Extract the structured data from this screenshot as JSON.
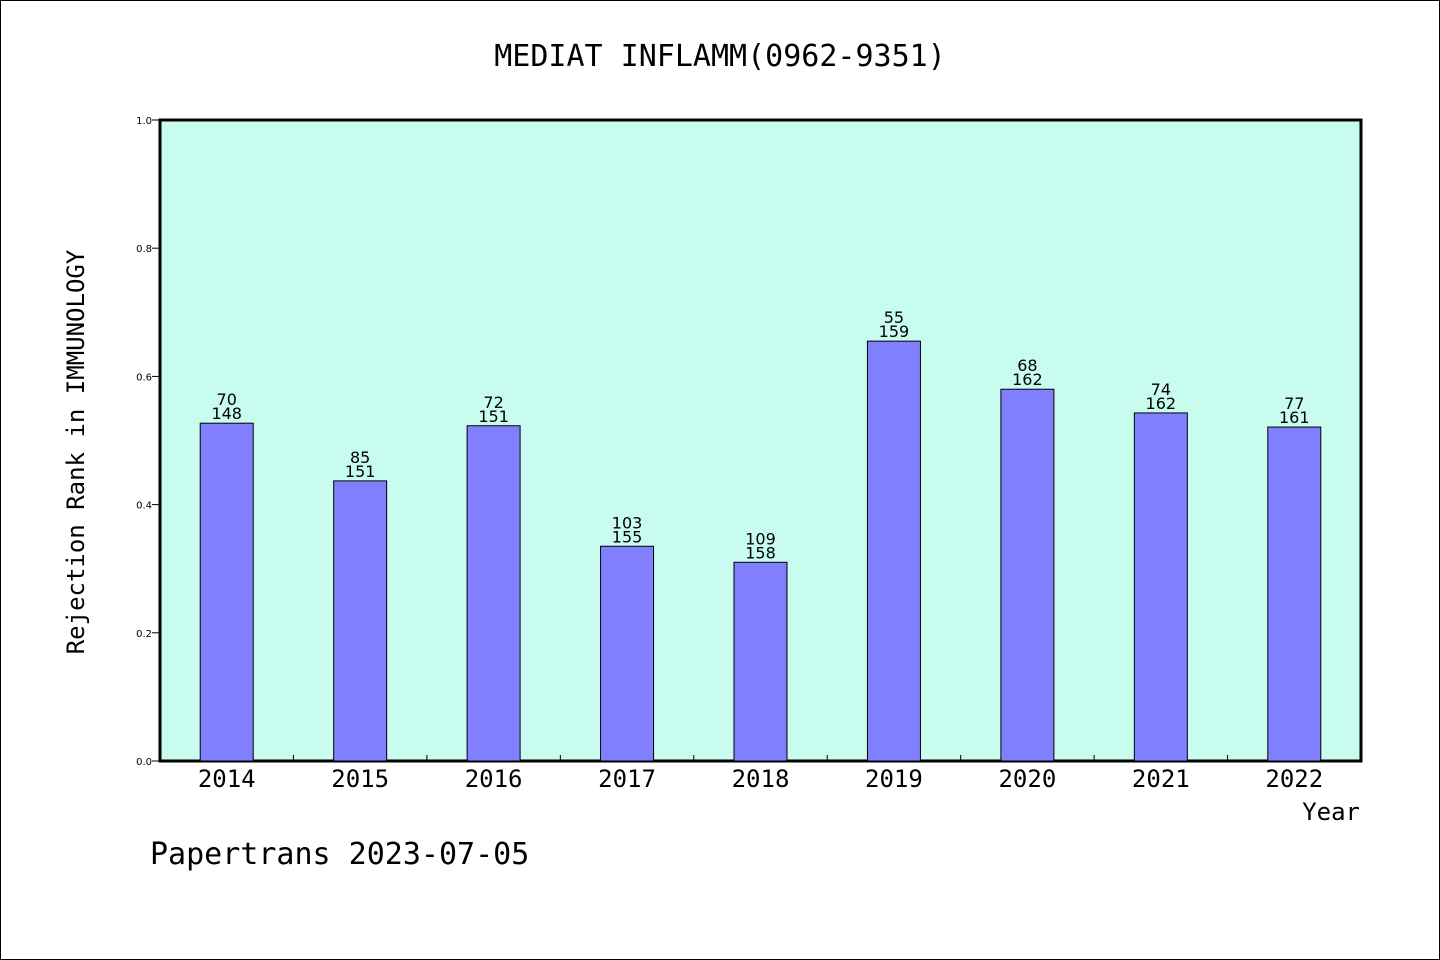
{
  "chart_data": {
    "type": "bar",
    "title": "MEDIAT INFLAMM(0962-9351)",
    "xlabel": "Year",
    "ylabel": "Rejection Rank in IMMUNOLOGY",
    "ylim": [
      0,
      1.0
    ],
    "yticks": [
      "0.0",
      "0.2",
      "0.4",
      "0.6",
      "0.8",
      "1.0"
    ],
    "categories": [
      "2014",
      "2015",
      "2016",
      "2017",
      "2018",
      "2019",
      "2020",
      "2021",
      "2022"
    ],
    "values": [
      0.527,
      0.437,
      0.523,
      0.335,
      0.31,
      0.655,
      0.58,
      0.543,
      0.521
    ],
    "rank_labels": [
      "70",
      "85",
      "72",
      "103",
      "109",
      "55",
      "68",
      "74",
      "77"
    ],
    "total_labels": [
      "148",
      "151",
      "151",
      "155",
      "158",
      "159",
      "162",
      "162",
      "161"
    ],
    "grid": false,
    "footer": "Papertrans 2023-07-05",
    "colors": {
      "plot_background": "#c8fcee",
      "bar_fill": "#8080ff",
      "bar_stroke": "#000000",
      "axis": "#000000"
    }
  }
}
